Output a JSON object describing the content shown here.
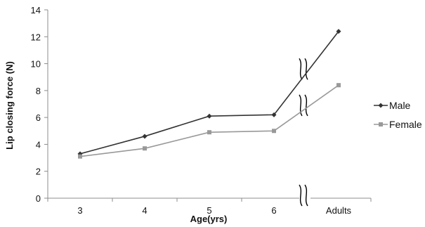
{
  "chart_data": {
    "type": "line",
    "xlabel": "Age(yrs)",
    "ylabel": "Lip closing force (N)",
    "categories": [
      "3",
      "4",
      "5",
      "6",
      "Adults"
    ],
    "ylim": [
      0,
      14
    ],
    "yticks": [
      0,
      2,
      4,
      6,
      8,
      10,
      12,
      14
    ],
    "grid": false,
    "legend_position": "right",
    "axis_break": "between 6 and Adults",
    "series": [
      {
        "name": "Male",
        "values": [
          3.3,
          4.6,
          6.1,
          6.2,
          12.4
        ],
        "color": "#333333",
        "marker": "diamond"
      },
      {
        "name": "Female",
        "values": [
          3.1,
          3.7,
          4.9,
          5.0,
          8.4
        ],
        "color": "#999999",
        "marker": "square"
      }
    ]
  }
}
